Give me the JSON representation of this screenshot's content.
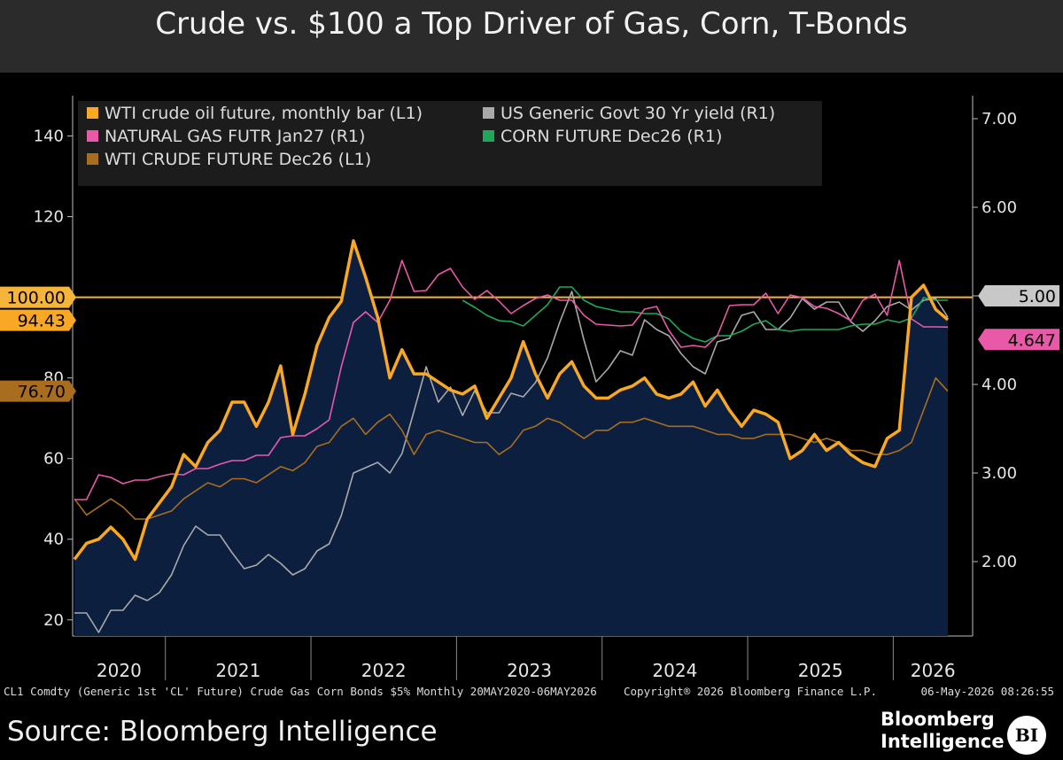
{
  "title": "Crude vs. $100 a Top Driver of Gas, Corn, T-Bonds",
  "footer": {
    "note": "CL1 Comdty (Generic 1st 'CL' Future) Crude Gas Corn Bonds $5% Monthly 20MAY2020-06MAY2026",
    "copyright": "Copyright® 2026 Bloomberg Finance L.P.",
    "timestamp": "06-May-2026 08:26:55",
    "source": "Source: Bloomberg Intelligence",
    "brand_line1": "Bloomberg",
    "brand_line2": "Intelligence",
    "logo": "BI"
  },
  "chart_data": {
    "type": "line",
    "x": [
      "2020-05",
      "2020-06",
      "2020-07",
      "2020-08",
      "2020-09",
      "2020-10",
      "2020-11",
      "2020-12",
      "2021-01",
      "2021-02",
      "2021-03",
      "2021-04",
      "2021-05",
      "2021-06",
      "2021-07",
      "2021-08",
      "2021-09",
      "2021-10",
      "2021-11",
      "2021-12",
      "2022-01",
      "2022-02",
      "2022-03",
      "2022-04",
      "2022-05",
      "2022-06",
      "2022-07",
      "2022-08",
      "2022-09",
      "2022-10",
      "2022-11",
      "2022-12",
      "2023-01",
      "2023-02",
      "2023-03",
      "2023-04",
      "2023-05",
      "2023-06",
      "2023-07",
      "2023-08",
      "2023-09",
      "2023-10",
      "2023-11",
      "2023-12",
      "2024-01",
      "2024-02",
      "2024-03",
      "2024-04",
      "2024-05",
      "2024-06",
      "2024-07",
      "2024-08",
      "2024-09",
      "2024-10",
      "2024-11",
      "2024-12",
      "2025-01",
      "2025-02",
      "2025-03",
      "2025-04",
      "2025-05",
      "2025-06",
      "2025-07",
      "2025-08",
      "2025-09",
      "2025-10",
      "2025-11",
      "2025-12",
      "2026-01",
      "2026-02",
      "2026-03",
      "2026-04",
      "2026-05"
    ],
    "x_tick_labels": [
      "2020",
      "2021",
      "2022",
      "2023",
      "2024",
      "2025",
      "2026"
    ],
    "y_left": {
      "ticks": [
        20,
        40,
        60,
        80,
        100,
        120,
        140
      ],
      "range": [
        16,
        150
      ]
    },
    "y_right": {
      "ticks": [
        2.0,
        3.0,
        4.0,
        5.0,
        6.0,
        7.0
      ],
      "range": [
        1.16,
        7.26
      ]
    },
    "reference_line": {
      "axis": "left",
      "value": 100,
      "label": "100.00",
      "color": "#f5b53a"
    },
    "series": [
      {
        "name": "WTI crude oil future, monthly bar (L1)",
        "axis": "left",
        "color": "#f9a825",
        "style": "area",
        "values": [
          35,
          39,
          40,
          43,
          40,
          35,
          45,
          49,
          53,
          61,
          58,
          64,
          67,
          74,
          74,
          68,
          74,
          83,
          66,
          76,
          88,
          95,
          99,
          114,
          105,
          95,
          80,
          87,
          81,
          81,
          79,
          77,
          76,
          78,
          70,
          75,
          80,
          89,
          81,
          75,
          81,
          84,
          78,
          75,
          75,
          77,
          78,
          80,
          76,
          75,
          76,
          79,
          73,
          77,
          72,
          68,
          72,
          71,
          69,
          60,
          62,
          66,
          62,
          64,
          61,
          59,
          58,
          65,
          67,
          100,
          103,
          97,
          94.43
        ],
        "end_label": "94.43"
      },
      {
        "name": "US Generic Govt 30 Yr yield (R1)",
        "axis": "right",
        "color": "#a9a9a9",
        "style": "line",
        "values": [
          1.42,
          1.42,
          1.2,
          1.45,
          1.45,
          1.62,
          1.56,
          1.65,
          1.85,
          2.18,
          2.4,
          2.3,
          2.3,
          2.1,
          1.92,
          1.96,
          2.08,
          1.98,
          1.85,
          1.92,
          2.12,
          2.2,
          2.52,
          3.0,
          3.06,
          3.12,
          3.0,
          3.22,
          3.7,
          4.2,
          3.8,
          3.97,
          3.65,
          3.93,
          3.68,
          3.68,
          3.9,
          3.86,
          4.02,
          4.3,
          4.7,
          5.05,
          4.5,
          4.03,
          4.18,
          4.38,
          4.33,
          4.73,
          4.62,
          4.55,
          4.35,
          4.2,
          4.12,
          4.48,
          4.52,
          4.78,
          4.82,
          4.62,
          4.62,
          4.75,
          4.97,
          4.85,
          4.93,
          4.93,
          4.71,
          4.6,
          4.72,
          4.88,
          4.93,
          4.84,
          4.95,
          4.97,
          4.76
        ]
      },
      {
        "name": "NATURAL GAS FUTR Jan27 (R1)",
        "axis": "right",
        "color": "#e85aa8",
        "style": "line",
        "values": [
          2.7,
          2.7,
          2.98,
          2.95,
          2.88,
          2.92,
          2.92,
          2.96,
          2.99,
          2.98,
          3.05,
          3.05,
          3.1,
          3.14,
          3.14,
          3.2,
          3.2,
          3.4,
          3.42,
          3.42,
          3.5,
          3.6,
          4.2,
          4.7,
          4.82,
          4.7,
          4.95,
          5.4,
          5.05,
          5.06,
          5.24,
          5.31,
          5.1,
          4.96,
          5.06,
          4.94,
          4.8,
          4.89,
          4.97,
          5.01,
          4.95,
          4.95,
          4.78,
          4.68,
          4.67,
          4.66,
          4.67,
          4.85,
          4.88,
          4.61,
          4.42,
          4.44,
          4.42,
          4.55,
          4.89,
          4.9,
          4.9,
          5.03,
          4.8,
          5.01,
          4.98,
          4.88,
          4.86,
          4.8,
          4.72,
          4.95,
          5.02,
          4.78,
          5.4,
          4.74,
          4.65,
          4.65,
          4.647
        ],
        "end_label": "4.647"
      },
      {
        "name": "CORN FUTURE Dec26 (R1)",
        "axis": "right",
        "color": "#1fa85a",
        "style": "line",
        "values": [
          null,
          null,
          null,
          null,
          null,
          null,
          null,
          null,
          null,
          null,
          null,
          null,
          null,
          null,
          null,
          null,
          null,
          null,
          null,
          null,
          null,
          null,
          null,
          null,
          null,
          null,
          null,
          null,
          null,
          null,
          null,
          null,
          4.95,
          4.87,
          4.78,
          4.72,
          4.71,
          4.66,
          4.78,
          4.9,
          5.1,
          5.1,
          4.95,
          4.88,
          4.85,
          4.82,
          4.82,
          4.8,
          4.8,
          4.74,
          4.6,
          4.52,
          4.48,
          4.55,
          4.55,
          4.6,
          4.68,
          4.72,
          4.62,
          4.6,
          4.62,
          4.62,
          4.62,
          4.62,
          4.66,
          4.68,
          4.68,
          4.73,
          4.7,
          4.75,
          4.98,
          4.95,
          4.95
        ]
      },
      {
        "name": "WTI CRUDE FUTURE Dec26 (L1)",
        "axis": "left",
        "color": "#a86d1e",
        "style": "line",
        "values": [
          50,
          46,
          48,
          50,
          48,
          45,
          45,
          46,
          47,
          50,
          52,
          54,
          53,
          55,
          55,
          54,
          56,
          58,
          57,
          59,
          63,
          64,
          68,
          70,
          66,
          69,
          71,
          67,
          61,
          66,
          67,
          66,
          65,
          64,
          64,
          61,
          63,
          67,
          68,
          70,
          69,
          67,
          65,
          67,
          67,
          69,
          69,
          70,
          69,
          68,
          68,
          68,
          67,
          66,
          66,
          65,
          65,
          66,
          66,
          66,
          65,
          64,
          65,
          64,
          62,
          62,
          61,
          61,
          62,
          64,
          72,
          80,
          76.7
        ],
        "end_label": "76.70"
      }
    ],
    "legend_position": "top-left",
    "grid": false
  }
}
